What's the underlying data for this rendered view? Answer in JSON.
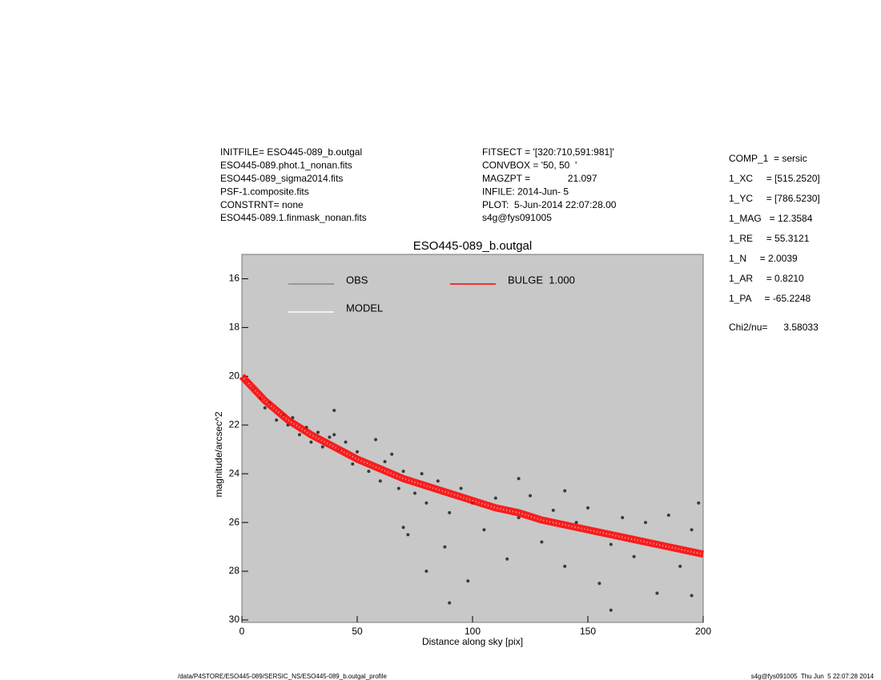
{
  "info_left": [
    "INITFILE= ESO445-089_b.outgal",
    "ESO445-089.phot.1_nonan.fits",
    "ESO445-089_sigma2014.fits",
    "PSF-1.composite.fits",
    "CONSTRNT= none",
    "ESO445-089.1.finmask_nonan.fits"
  ],
  "info_middle": [
    "FITSECT = '[320:710,591:981]'",
    "CONVBOX = '50, 50  '",
    "MAGZPT =              21.097",
    "INFILE: 2014-Jun- 5",
    "PLOT:  5-Jun-2014 22:07:28.00",
    "s4g@fys091005"
  ],
  "params": [
    "COMP_1  = sersic",
    "1_XC     = [515.2520]",
    "1_YC     = [786.5230]",
    "1_MAG   = 12.3584",
    "1_RE     = 55.3121",
    "1_N     = 2.0039",
    "1_AR     = 0.8210",
    "1_PA     = -65.2248"
  ],
  "chi2": "Chi2/nu=      3.58033",
  "footer_left": "/data/P4STORE/ESO445-089/SERSIC_NS/ESO445-089_b.outgal_profile",
  "footer_right": "s4g@fys091005  Thu Jun  5 22:07:28 2014",
  "chart_data": {
    "type": "scatter",
    "title": "ESO445-089_b.outgal",
    "xlabel": "Distance along sky [pix]",
    "ylabel": "magnitude/arcsec^2",
    "xlim": [
      0,
      200
    ],
    "ylim": [
      15,
      30.1
    ],
    "y_inverted": true,
    "xticks": [
      0,
      50,
      100,
      150,
      200
    ],
    "yticks": [
      16,
      18,
      20,
      22,
      24,
      26,
      28,
      30
    ],
    "grid": false,
    "background": "#c8c8c8",
    "series": [
      {
        "name": "OBS",
        "color": "#888888",
        "point_color": "#3a3a3a",
        "marker": "dot",
        "x": [
          2,
          5,
          8,
          10,
          12,
          15,
          18,
          20,
          22,
          25,
          28,
          30,
          33,
          35,
          38,
          40,
          42,
          45,
          48,
          50,
          55,
          58,
          60,
          62,
          65,
          68,
          70,
          72,
          75,
          78,
          80,
          85,
          88,
          90,
          95,
          98,
          100,
          105,
          110,
          115,
          120,
          125,
          130,
          135,
          140,
          145,
          150,
          155,
          160,
          165,
          170,
          175,
          180,
          185,
          190,
          195,
          198,
          40,
          70,
          90,
          120,
          160,
          195,
          80,
          140
        ],
        "values": [
          20.2,
          20.5,
          20.9,
          21.3,
          21.1,
          21.8,
          21.6,
          22.0,
          21.7,
          22.4,
          22.1,
          22.7,
          22.3,
          22.9,
          22.5,
          21.4,
          23.0,
          22.7,
          23.6,
          23.1,
          23.9,
          22.6,
          24.3,
          23.5,
          23.2,
          24.6,
          23.9,
          26.5,
          24.8,
          24.0,
          25.2,
          24.3,
          27.0,
          25.6,
          24.6,
          28.4,
          25.2,
          26.3,
          25.0,
          27.5,
          25.8,
          24.9,
          26.8,
          25.5,
          27.8,
          26.0,
          25.4,
          28.5,
          26.9,
          25.8,
          27.4,
          26.0,
          28.9,
          25.7,
          27.8,
          26.3,
          25.2,
          22.4,
          26.2,
          29.3,
          24.2,
          29.6,
          29.0,
          28.0,
          24.7
        ]
      },
      {
        "name": "MODEL",
        "color": "#ffffff",
        "x": [
          0,
          10,
          20,
          30,
          40,
          50,
          60,
          70,
          80,
          90,
          100,
          110,
          120,
          130,
          140,
          150,
          160,
          170,
          180,
          190,
          200
        ],
        "values": [
          20.0,
          21.0,
          21.8,
          22.4,
          22.9,
          23.4,
          23.8,
          24.2,
          24.5,
          24.8,
          25.1,
          25.4,
          25.6,
          25.9,
          26.1,
          26.3,
          26.5,
          26.7,
          26.9,
          27.1,
          27.3
        ]
      },
      {
        "name": "BULGE  1.000",
        "color": "#ff0000",
        "x": [
          0,
          10,
          20,
          30,
          40,
          50,
          60,
          70,
          80,
          90,
          100,
          110,
          120,
          130,
          140,
          150,
          160,
          170,
          180,
          190,
          200
        ],
        "values": [
          20.0,
          21.0,
          21.8,
          22.4,
          22.9,
          23.4,
          23.8,
          24.2,
          24.5,
          24.8,
          25.1,
          25.4,
          25.6,
          25.9,
          26.1,
          26.3,
          26.5,
          26.7,
          26.9,
          27.1,
          27.3
        ]
      }
    ]
  }
}
